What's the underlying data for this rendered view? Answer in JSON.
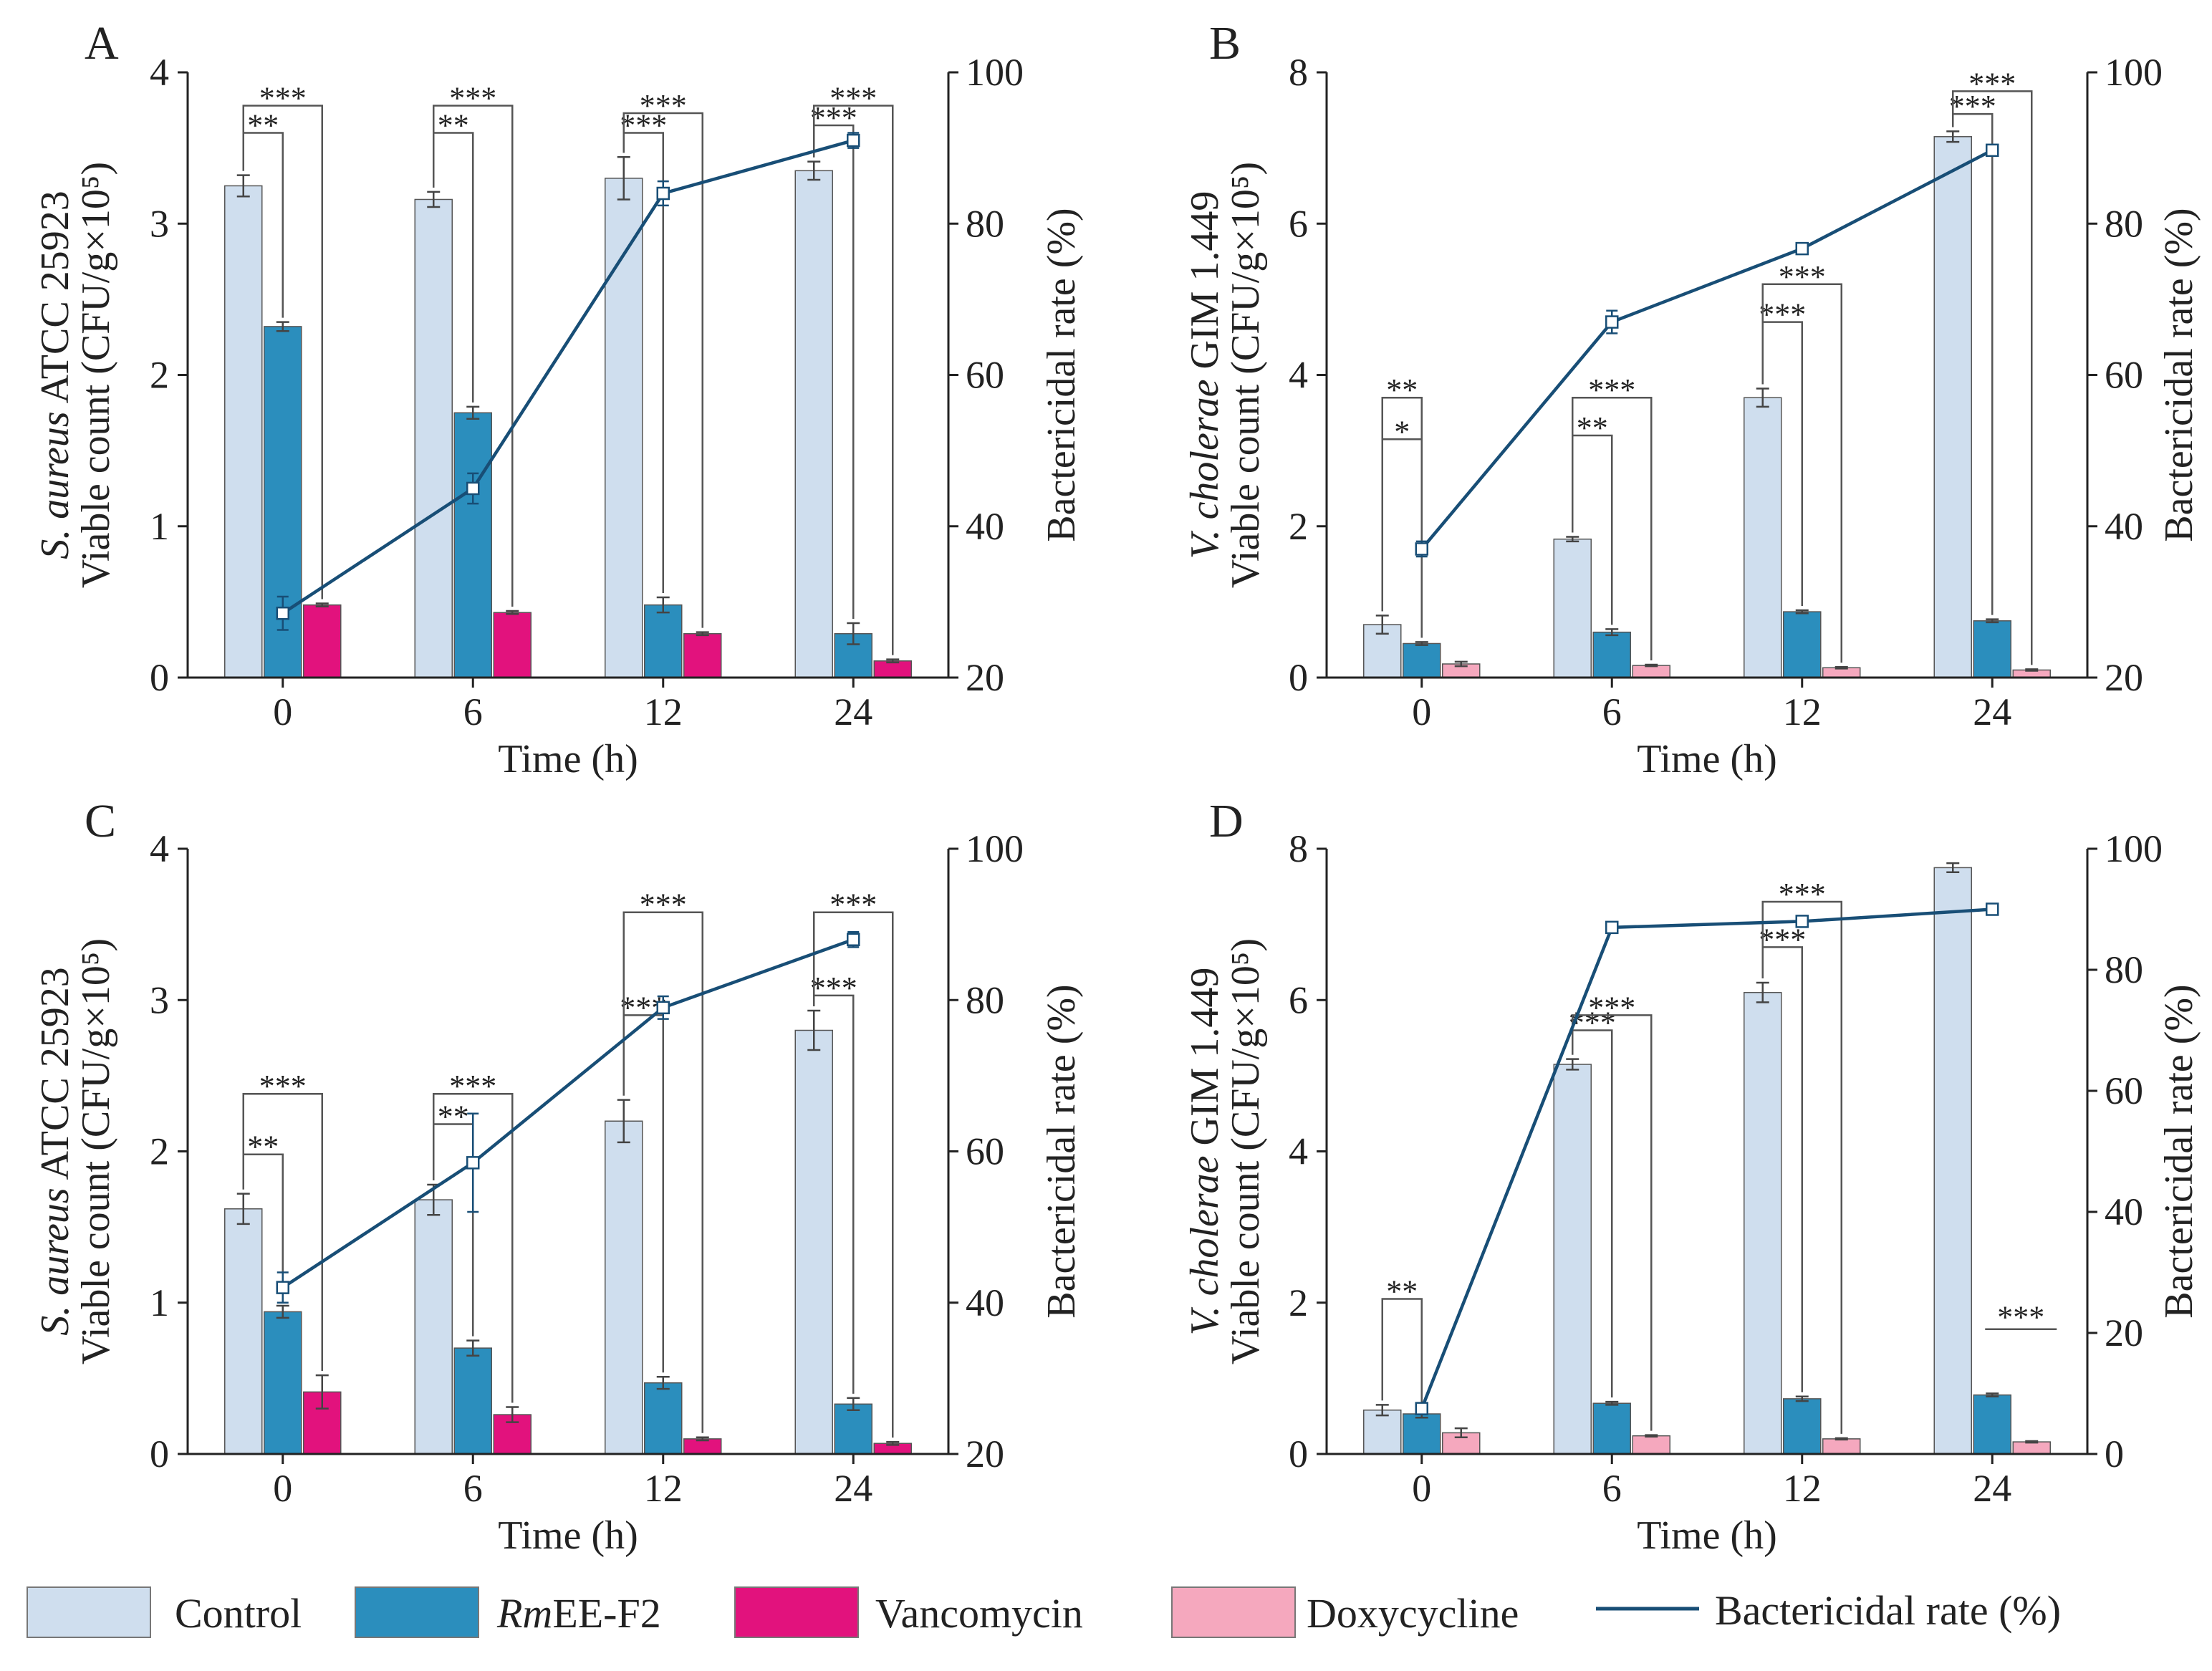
{
  "colors": {
    "control": "#cfdeee",
    "rmee": "#2b8ebd",
    "vancomycin": "#e2127d",
    "doxycycline": "#f5a8be",
    "rate_line": "#184e76"
  },
  "legend": {
    "control": "Control",
    "rmee_italic": "Rm",
    "rmee_rest": "EE-F2",
    "vancomycin": "Vancomycin",
    "doxycycline": "Doxycycline",
    "rate": "Bactericidal rate (%)"
  },
  "chart_data": [
    {
      "type": "bar",
      "panel": "A",
      "xlabel": "Time (h)",
      "ylabel_species": "S. aureus",
      "ylabel_strain": " ATCC 25923",
      "ylabel_line2": "Viable count (CFU/g×10⁵)",
      "y2label": "Bactericidal rate (%)",
      "categories": [
        "0",
        "6",
        "12",
        "24"
      ],
      "ylim": [
        0,
        4
      ],
      "yticks": [
        "0",
        "1",
        "2",
        "3",
        "4"
      ],
      "y2lim": [
        20,
        100
      ],
      "y2ticks": [
        "20",
        "40",
        "60",
        "80",
        "100"
      ],
      "third_series": "vancomycin",
      "series": [
        {
          "name": "Control",
          "values": [
            3.25,
            3.16,
            3.3,
            3.35
          ],
          "errors": [
            0.07,
            0.05,
            0.14,
            0.06
          ]
        },
        {
          "name": "RmEE-F2",
          "values": [
            2.32,
            1.75,
            0.48,
            0.29
          ],
          "errors": [
            0.03,
            0.04,
            0.05,
            0.07
          ]
        },
        {
          "name": "Vancomycin",
          "values": [
            0.48,
            0.43,
            0.29,
            0.11
          ],
          "errors": [
            0.01,
            0.01,
            0.01,
            0.01
          ]
        }
      ],
      "rate": {
        "values": [
          28.5,
          45,
          84,
          91
        ],
        "errors": [
          2.2,
          2.0,
          1.6,
          1.0
        ]
      },
      "significance": [
        {
          "category": 0,
          "label": "**",
          "y": 3.6
        },
        {
          "category": 0,
          "label": "***",
          "y": 3.78
        },
        {
          "category": 1,
          "label": "**",
          "y": 3.6
        },
        {
          "category": 1,
          "label": "***",
          "y": 3.78
        },
        {
          "category": 2,
          "label": "***",
          "y": 3.6
        },
        {
          "category": 2,
          "label": "***",
          "y": 3.73
        },
        {
          "category": 3,
          "label": "***",
          "y": 3.65
        },
        {
          "category": 3,
          "label": "***",
          "y": 3.78
        }
      ]
    },
    {
      "type": "bar",
      "panel": "B",
      "xlabel": "Time (h)",
      "ylabel_species": "V. cholerae",
      "ylabel_strain": " GIM 1.449",
      "ylabel_line2": "Viable count (CFU/g×10⁵)",
      "y2label": "Bactericidal rate (%)",
      "categories": [
        "0",
        "6",
        "12",
        "24"
      ],
      "ylim": [
        0,
        8
      ],
      "yticks": [
        "0",
        "2",
        "4",
        "6",
        "8"
      ],
      "y2lim": [
        20,
        100
      ],
      "y2ticks": [
        "20",
        "40",
        "60",
        "80",
        "100"
      ],
      "third_series": "doxycycline",
      "series": [
        {
          "name": "Control",
          "values": [
            0.7,
            1.83,
            3.7,
            7.15
          ],
          "errors": [
            0.12,
            0.03,
            0.12,
            0.07
          ]
        },
        {
          "name": "RmEE-F2",
          "values": [
            0.45,
            0.6,
            0.87,
            0.75
          ],
          "errors": [
            0.02,
            0.04,
            0.02,
            0.02
          ]
        },
        {
          "name": "Doxycycline",
          "values": [
            0.18,
            0.16,
            0.13,
            0.1
          ],
          "errors": [
            0.03,
            0.01,
            0.01,
            0.01
          ]
        }
      ],
      "rate": {
        "values": [
          37,
          67,
          76.7,
          89.7
        ],
        "errors": [
          1.0,
          1.5,
          0.3,
          0.3
        ]
      },
      "significance": [
        {
          "category": 0,
          "label": "*",
          "y": 3.15
        },
        {
          "category": 0,
          "label": "**",
          "y": 3.7
        },
        {
          "category": 1,
          "label": "**",
          "y": 3.2
        },
        {
          "category": 1,
          "label": "***",
          "y": 3.7
        },
        {
          "category": 2,
          "label": "***",
          "y": 4.7
        },
        {
          "category": 2,
          "label": "***",
          "y": 5.2
        },
        {
          "category": 3,
          "label": "***",
          "y": 7.45
        },
        {
          "category": 3,
          "label": "***",
          "y": 7.75
        }
      ]
    },
    {
      "type": "bar",
      "panel": "C",
      "xlabel": "Time (h)",
      "ylabel_species": "S. aureus",
      "ylabel_strain": " ATCC 25923",
      "ylabel_line2": "Viable count (CFU/g×10⁵)",
      "y2label": "Bactericidal rate (%)",
      "categories": [
        "0",
        "6",
        "12",
        "24"
      ],
      "ylim": [
        0,
        4
      ],
      "yticks": [
        "0",
        "1",
        "2",
        "3",
        "4"
      ],
      "y2lim": [
        20,
        100
      ],
      "y2ticks": [
        "20",
        "40",
        "60",
        "80",
        "100"
      ],
      "third_series": "vancomycin",
      "series": [
        {
          "name": "Control",
          "values": [
            1.62,
            1.68,
            2.2,
            2.8
          ],
          "errors": [
            0.1,
            0.1,
            0.14,
            0.13
          ]
        },
        {
          "name": "RmEE-F2",
          "values": [
            0.94,
            0.7,
            0.47,
            0.33
          ],
          "errors": [
            0.04,
            0.05,
            0.04,
            0.04
          ]
        },
        {
          "name": "Vancomycin",
          "values": [
            0.41,
            0.26,
            0.1,
            0.07
          ],
          "errors": [
            0.11,
            0.05,
            0.01,
            0.01
          ]
        }
      ],
      "rate": {
        "values": [
          42,
          58.5,
          79,
          88
        ],
        "errors": [
          2.0,
          6.5,
          1.5,
          1.0
        ]
      },
      "significance": [
        {
          "category": 0,
          "label": "**",
          "y": 1.98
        },
        {
          "category": 0,
          "label": "***",
          "y": 2.38
        },
        {
          "category": 1,
          "label": "**",
          "y": 2.18
        },
        {
          "category": 1,
          "label": "***",
          "y": 2.38
        },
        {
          "category": 2,
          "label": "***",
          "y": 2.9
        },
        {
          "category": 2,
          "label": "***",
          "y": 3.58
        },
        {
          "category": 3,
          "label": "***",
          "y": 3.03
        },
        {
          "category": 3,
          "label": "***",
          "y": 3.58
        }
      ]
    },
    {
      "type": "bar",
      "panel": "D",
      "xlabel": "Time (h)",
      "ylabel_species": "V. cholerae",
      "ylabel_strain": " GIM 1.449",
      "ylabel_line2": "Viable count (CFU/g×10⁵)",
      "y2label": "Bactericidal rate (%)",
      "categories": [
        "0",
        "6",
        "12",
        "24"
      ],
      "ylim": [
        0,
        8
      ],
      "yticks": [
        "0",
        "2",
        "4",
        "6",
        "8"
      ],
      "y2lim": [
        0,
        100
      ],
      "y2ticks": [
        "0",
        "20",
        "40",
        "60",
        "80",
        "100"
      ],
      "third_series": "doxycycline",
      "series": [
        {
          "name": "Control",
          "values": [
            0.58,
            5.15,
            6.1,
            7.75
          ],
          "errors": [
            0.07,
            0.07,
            0.13,
            0.06
          ]
        },
        {
          "name": "RmEE-F2",
          "values": [
            0.53,
            0.67,
            0.73,
            0.78
          ],
          "errors": [
            0.05,
            0.02,
            0.03,
            0.02
          ]
        },
        {
          "name": "Doxycycline",
          "values": [
            0.28,
            0.24,
            0.2,
            0.16
          ],
          "errors": [
            0.06,
            0.01,
            0.01,
            0.01
          ]
        }
      ],
      "rate": {
        "values": [
          7.5,
          87,
          88,
          90
        ],
        "errors": [
          0.7,
          0.3,
          0.3,
          0.3
        ]
      },
      "significance": [
        {
          "category": 0,
          "label": "**",
          "y": 2.05
        },
        {
          "category": 1,
          "label": "***",
          "y": 5.6
        },
        {
          "category": 1,
          "label": "***",
          "y": 5.8
        },
        {
          "category": 2,
          "label": "***",
          "y": 6.7
        },
        {
          "category": 2,
          "label": "***",
          "y": 7.3
        }
      ],
      "significance_tags": [
        {
          "category": 3,
          "label": "***",
          "y": 1.65
        }
      ]
    }
  ]
}
